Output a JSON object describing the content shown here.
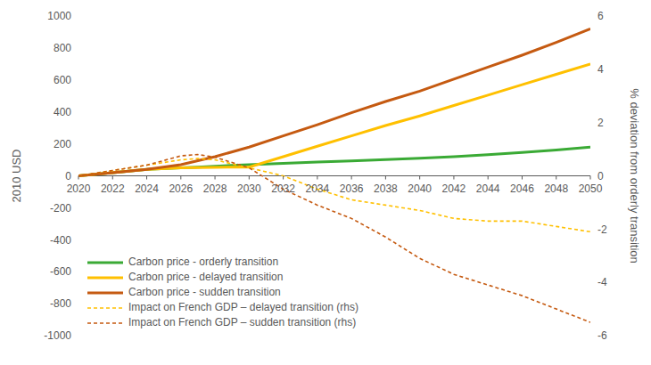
{
  "chart_data": {
    "type": "line",
    "x": [
      2020,
      2022,
      2024,
      2026,
      2027,
      2028,
      2030,
      2032,
      2034,
      2036,
      2038,
      2040,
      2042,
      2044,
      2046,
      2048,
      2050
    ],
    "xlim": [
      2020,
      2050
    ],
    "xticks": [
      2020,
      2022,
      2024,
      2026,
      2028,
      2030,
      2032,
      2034,
      2036,
      2038,
      2040,
      2042,
      2044,
      2046,
      2048,
      2050
    ],
    "ylabel": "2010 USD",
    "ylim": [
      -1000,
      1000
    ],
    "yticks": [
      -1000,
      -800,
      -600,
      -400,
      -200,
      0,
      200,
      400,
      600,
      800,
      1000
    ],
    "y2label": "% deviation from orderly transition",
    "y2lim": [
      -6,
      6
    ],
    "y2ticks": [
      -6,
      -4,
      -2,
      0,
      2,
      4,
      6
    ],
    "grid": false,
    "legend": "lower left",
    "series": [
      {
        "name": "Carbon price - orderly transition",
        "color": "#3aaa35",
        "line_style": "solid",
        "values": [
          0,
          20,
          40,
          50,
          55,
          60,
          70,
          78,
          86,
          94,
          102,
          110,
          120,
          132,
          146,
          162,
          180
        ]
      },
      {
        "name": "Carbon price - delayed transition",
        "color": "#ffc000",
        "line_style": "solid",
        "values": [
          0,
          20,
          40,
          50,
          52,
          53,
          55,
          120,
          185,
          250,
          315,
          375,
          440,
          505,
          570,
          635,
          700
        ]
      },
      {
        "name": "Carbon price - sudden transition",
        "color": "#c55a11",
        "line_style": "solid",
        "values": [
          0,
          20,
          40,
          70,
          95,
          120,
          180,
          250,
          320,
          395,
          465,
          530,
          605,
          680,
          755,
          835,
          920
        ]
      },
      {
        "name": "Impact on French GDP – delayed transition (rhs)",
        "color": "#ffc000",
        "line_style": "dashed",
        "axis": "y2",
        "values": [
          0,
          0.2,
          0.4,
          0.6,
          0.65,
          0.6,
          0.3,
          0,
          -0.5,
          -0.9,
          -1.1,
          -1.3,
          -1.6,
          -1.7,
          -1.7,
          -1.9,
          -2.1
        ]
      },
      {
        "name": "Impact on French GDP – sudden transition (rhs)",
        "color": "#c55a11",
        "line_style": "dashed",
        "axis": "y2",
        "values": [
          0,
          0.2,
          0.4,
          0.75,
          0.8,
          0.7,
          0.3,
          -0.5,
          -1.1,
          -1.6,
          -2.3,
          -3.1,
          -3.7,
          -4.1,
          -4.5,
          -5.0,
          -5.5
        ]
      }
    ]
  }
}
